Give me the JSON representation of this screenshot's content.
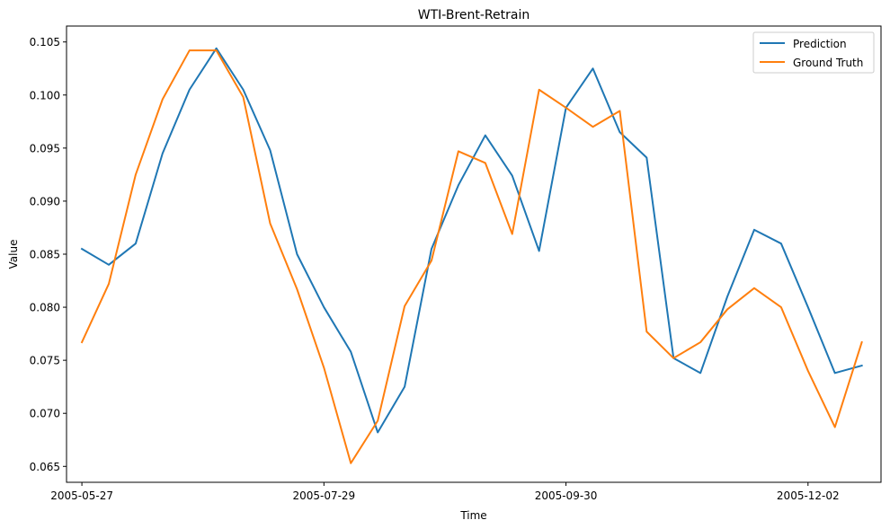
{
  "chart_data": {
    "type": "line",
    "title": "WTI-Brent-Retrain",
    "xlabel": "Time",
    "ylabel": "Value",
    "x_tick_labels": [
      "2005-05-27",
      "2005-07-29",
      "2005-09-30",
      "2005-12-02"
    ],
    "x_tick_dates": [
      "2005-05-27",
      "2005-07-29",
      "2005-09-30",
      "2005-12-02"
    ],
    "y_ticks": [
      0.065,
      0.07,
      0.075,
      0.08,
      0.085,
      0.09,
      0.095,
      0.1,
      0.105
    ],
    "y_tick_labels": [
      "0.065",
      "0.070",
      "0.075",
      "0.080",
      "0.085",
      "0.090",
      "0.095",
      "0.100",
      "0.105"
    ],
    "ylim": [
      0.0635,
      0.1065
    ],
    "xlim": [
      "2005-05-23",
      "2005-12-21"
    ],
    "grid": false,
    "legend_position": "top-right",
    "x": [
      "2005-05-27",
      "2005-06-03",
      "2005-06-10",
      "2005-06-17",
      "2005-06-24",
      "2005-07-01",
      "2005-07-08",
      "2005-07-15",
      "2005-07-22",
      "2005-07-29",
      "2005-08-05",
      "2005-08-12",
      "2005-08-19",
      "2005-08-26",
      "2005-09-02",
      "2005-09-09",
      "2005-09-16",
      "2005-09-23",
      "2005-09-30",
      "2005-10-07",
      "2005-10-14",
      "2005-10-21",
      "2005-10-28",
      "2005-11-04",
      "2005-11-11",
      "2005-11-18",
      "2005-11-25",
      "2005-12-02",
      "2005-12-09",
      "2005-12-16"
    ],
    "series": [
      {
        "name": "Prediction",
        "color": "#1f77b4",
        "values": [
          0.0855,
          0.084,
          0.086,
          0.0945,
          0.1005,
          0.1044,
          0.1005,
          0.0948,
          0.085,
          0.08,
          0.0758,
          0.0682,
          0.0725,
          0.0855,
          0.0915,
          0.0962,
          0.0924,
          0.0853,
          0.0988,
          0.1025,
          0.0965,
          0.0941,
          0.0752,
          0.0738,
          0.081,
          0.0873,
          0.086,
          0.08,
          0.0738,
          0.0745
        ]
      },
      {
        "name": "Ground Truth",
        "color": "#ff7f0e",
        "values": [
          0.0767,
          0.0822,
          0.0925,
          0.0996,
          0.1042,
          0.1042,
          0.0998,
          0.0879,
          0.0817,
          0.0743,
          0.0653,
          0.0693,
          0.0801,
          0.0844,
          0.0947,
          0.0936,
          0.0869,
          0.1005,
          0.0988,
          0.097,
          0.0985,
          0.0777,
          0.0752,
          0.0767,
          0.0798,
          0.0818,
          0.08,
          0.074,
          0.0687,
          0.0767
        ]
      }
    ]
  }
}
